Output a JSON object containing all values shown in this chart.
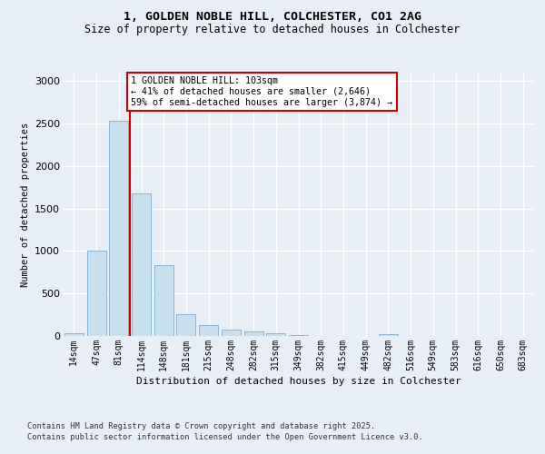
{
  "title_line1": "1, GOLDEN NOBLE HILL, COLCHESTER, CO1 2AG",
  "title_line2": "Size of property relative to detached houses in Colchester",
  "xlabel": "Distribution of detached houses by size in Colchester",
  "ylabel": "Number of detached properties",
  "categories": [
    "14sqm",
    "47sqm",
    "81sqm",
    "114sqm",
    "148sqm",
    "181sqm",
    "215sqm",
    "248sqm",
    "282sqm",
    "315sqm",
    "349sqm",
    "382sqm",
    "415sqm",
    "449sqm",
    "482sqm",
    "516sqm",
    "549sqm",
    "583sqm",
    "616sqm",
    "650sqm",
    "683sqm"
  ],
  "values": [
    35,
    1000,
    2530,
    1680,
    830,
    260,
    130,
    80,
    55,
    30,
    15,
    0,
    0,
    0,
    25,
    0,
    0,
    0,
    0,
    0,
    0
  ],
  "bar_color": "#c8dff0",
  "bar_edge_color": "#7aafd4",
  "vline_color": "#cc0000",
  "vline_bar_index": 2,
  "ylim": [
    0,
    3100
  ],
  "yticks": [
    0,
    500,
    1000,
    1500,
    2000,
    2500,
    3000
  ],
  "annotation_text": "1 GOLDEN NOBLE HILL: 103sqm\n← 41% of detached houses are smaller (2,646)\n59% of semi-detached houses are larger (3,874) →",
  "annotation_box_facecolor": "#ffffff",
  "annotation_box_edgecolor": "#cc0000",
  "footnote1": "Contains HM Land Registry data © Crown copyright and database right 2025.",
  "footnote2": "Contains public sector information licensed under the Open Government Licence v3.0.",
  "background_color": "#e8eef5",
  "grid_color": "#ffffff"
}
